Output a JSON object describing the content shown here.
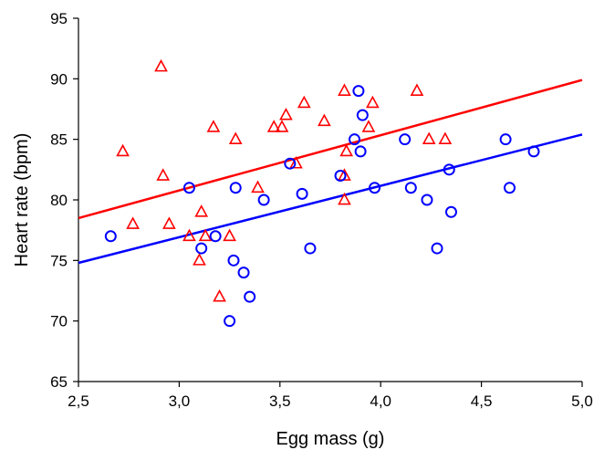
{
  "chart_data": {
    "type": "scatter",
    "title": "",
    "xlabel": "Egg mass (g)",
    "ylabel": "Heart rate (bpm)",
    "xlim": [
      2.5,
      5.0
    ],
    "ylim": [
      65,
      95
    ],
    "x_ticks": [
      2.5,
      3.0,
      3.5,
      4.0,
      4.5,
      5.0
    ],
    "x_tick_labels": [
      "2,5",
      "3,0",
      "3,5",
      "4,0",
      "4,5",
      "5,0"
    ],
    "y_ticks": [
      65,
      70,
      75,
      80,
      85,
      90,
      95
    ],
    "y_tick_labels": [
      "65",
      "70",
      "75",
      "80",
      "85",
      "90",
      "95"
    ],
    "grid": false,
    "legend": "none",
    "series": [
      {
        "marker": "triangle",
        "color": "#ff0000",
        "points": [
          [
            2.72,
            84
          ],
          [
            2.77,
            78
          ],
          [
            2.91,
            91
          ],
          [
            2.92,
            82
          ],
          [
            2.95,
            78
          ],
          [
            3.05,
            77
          ],
          [
            3.1,
            75
          ],
          [
            3.11,
            79
          ],
          [
            3.13,
            77
          ],
          [
            3.17,
            86
          ],
          [
            3.2,
            72
          ],
          [
            3.25,
            77
          ],
          [
            3.28,
            85
          ],
          [
            3.39,
            81
          ],
          [
            3.47,
            86
          ],
          [
            3.51,
            86
          ],
          [
            3.53,
            87
          ],
          [
            3.58,
            83
          ],
          [
            3.62,
            88
          ],
          [
            3.72,
            86.5
          ],
          [
            3.82,
            89
          ],
          [
            3.82,
            82
          ],
          [
            3.82,
            80
          ],
          [
            3.83,
            84
          ],
          [
            3.94,
            86
          ],
          [
            3.96,
            88
          ],
          [
            4.18,
            89
          ],
          [
            4.24,
            85
          ],
          [
            4.32,
            85
          ]
        ],
        "trendline": {
          "x": [
            2.5,
            5.0
          ],
          "y": [
            78.5,
            89.9
          ]
        }
      },
      {
        "marker": "circle",
        "color": "#0000ff",
        "points": [
          [
            2.66,
            77
          ],
          [
            3.05,
            81
          ],
          [
            3.11,
            76
          ],
          [
            3.18,
            77
          ],
          [
            3.25,
            70
          ],
          [
            3.27,
            75
          ],
          [
            3.28,
            81
          ],
          [
            3.32,
            74
          ],
          [
            3.35,
            72
          ],
          [
            3.42,
            80
          ],
          [
            3.55,
            83
          ],
          [
            3.61,
            80.5
          ],
          [
            3.65,
            76
          ],
          [
            3.8,
            82
          ],
          [
            3.87,
            85
          ],
          [
            3.89,
            89
          ],
          [
            3.9,
            84
          ],
          [
            3.91,
            87
          ],
          [
            3.97,
            81
          ],
          [
            4.12,
            85
          ],
          [
            4.15,
            81
          ],
          [
            4.23,
            80
          ],
          [
            4.28,
            76
          ],
          [
            4.34,
            82.5
          ],
          [
            4.35,
            79
          ],
          [
            4.62,
            85
          ],
          [
            4.64,
            81
          ],
          [
            4.76,
            84
          ]
        ],
        "trendline": {
          "x": [
            2.5,
            5.0
          ],
          "y": [
            74.8,
            85.4
          ]
        }
      }
    ]
  }
}
